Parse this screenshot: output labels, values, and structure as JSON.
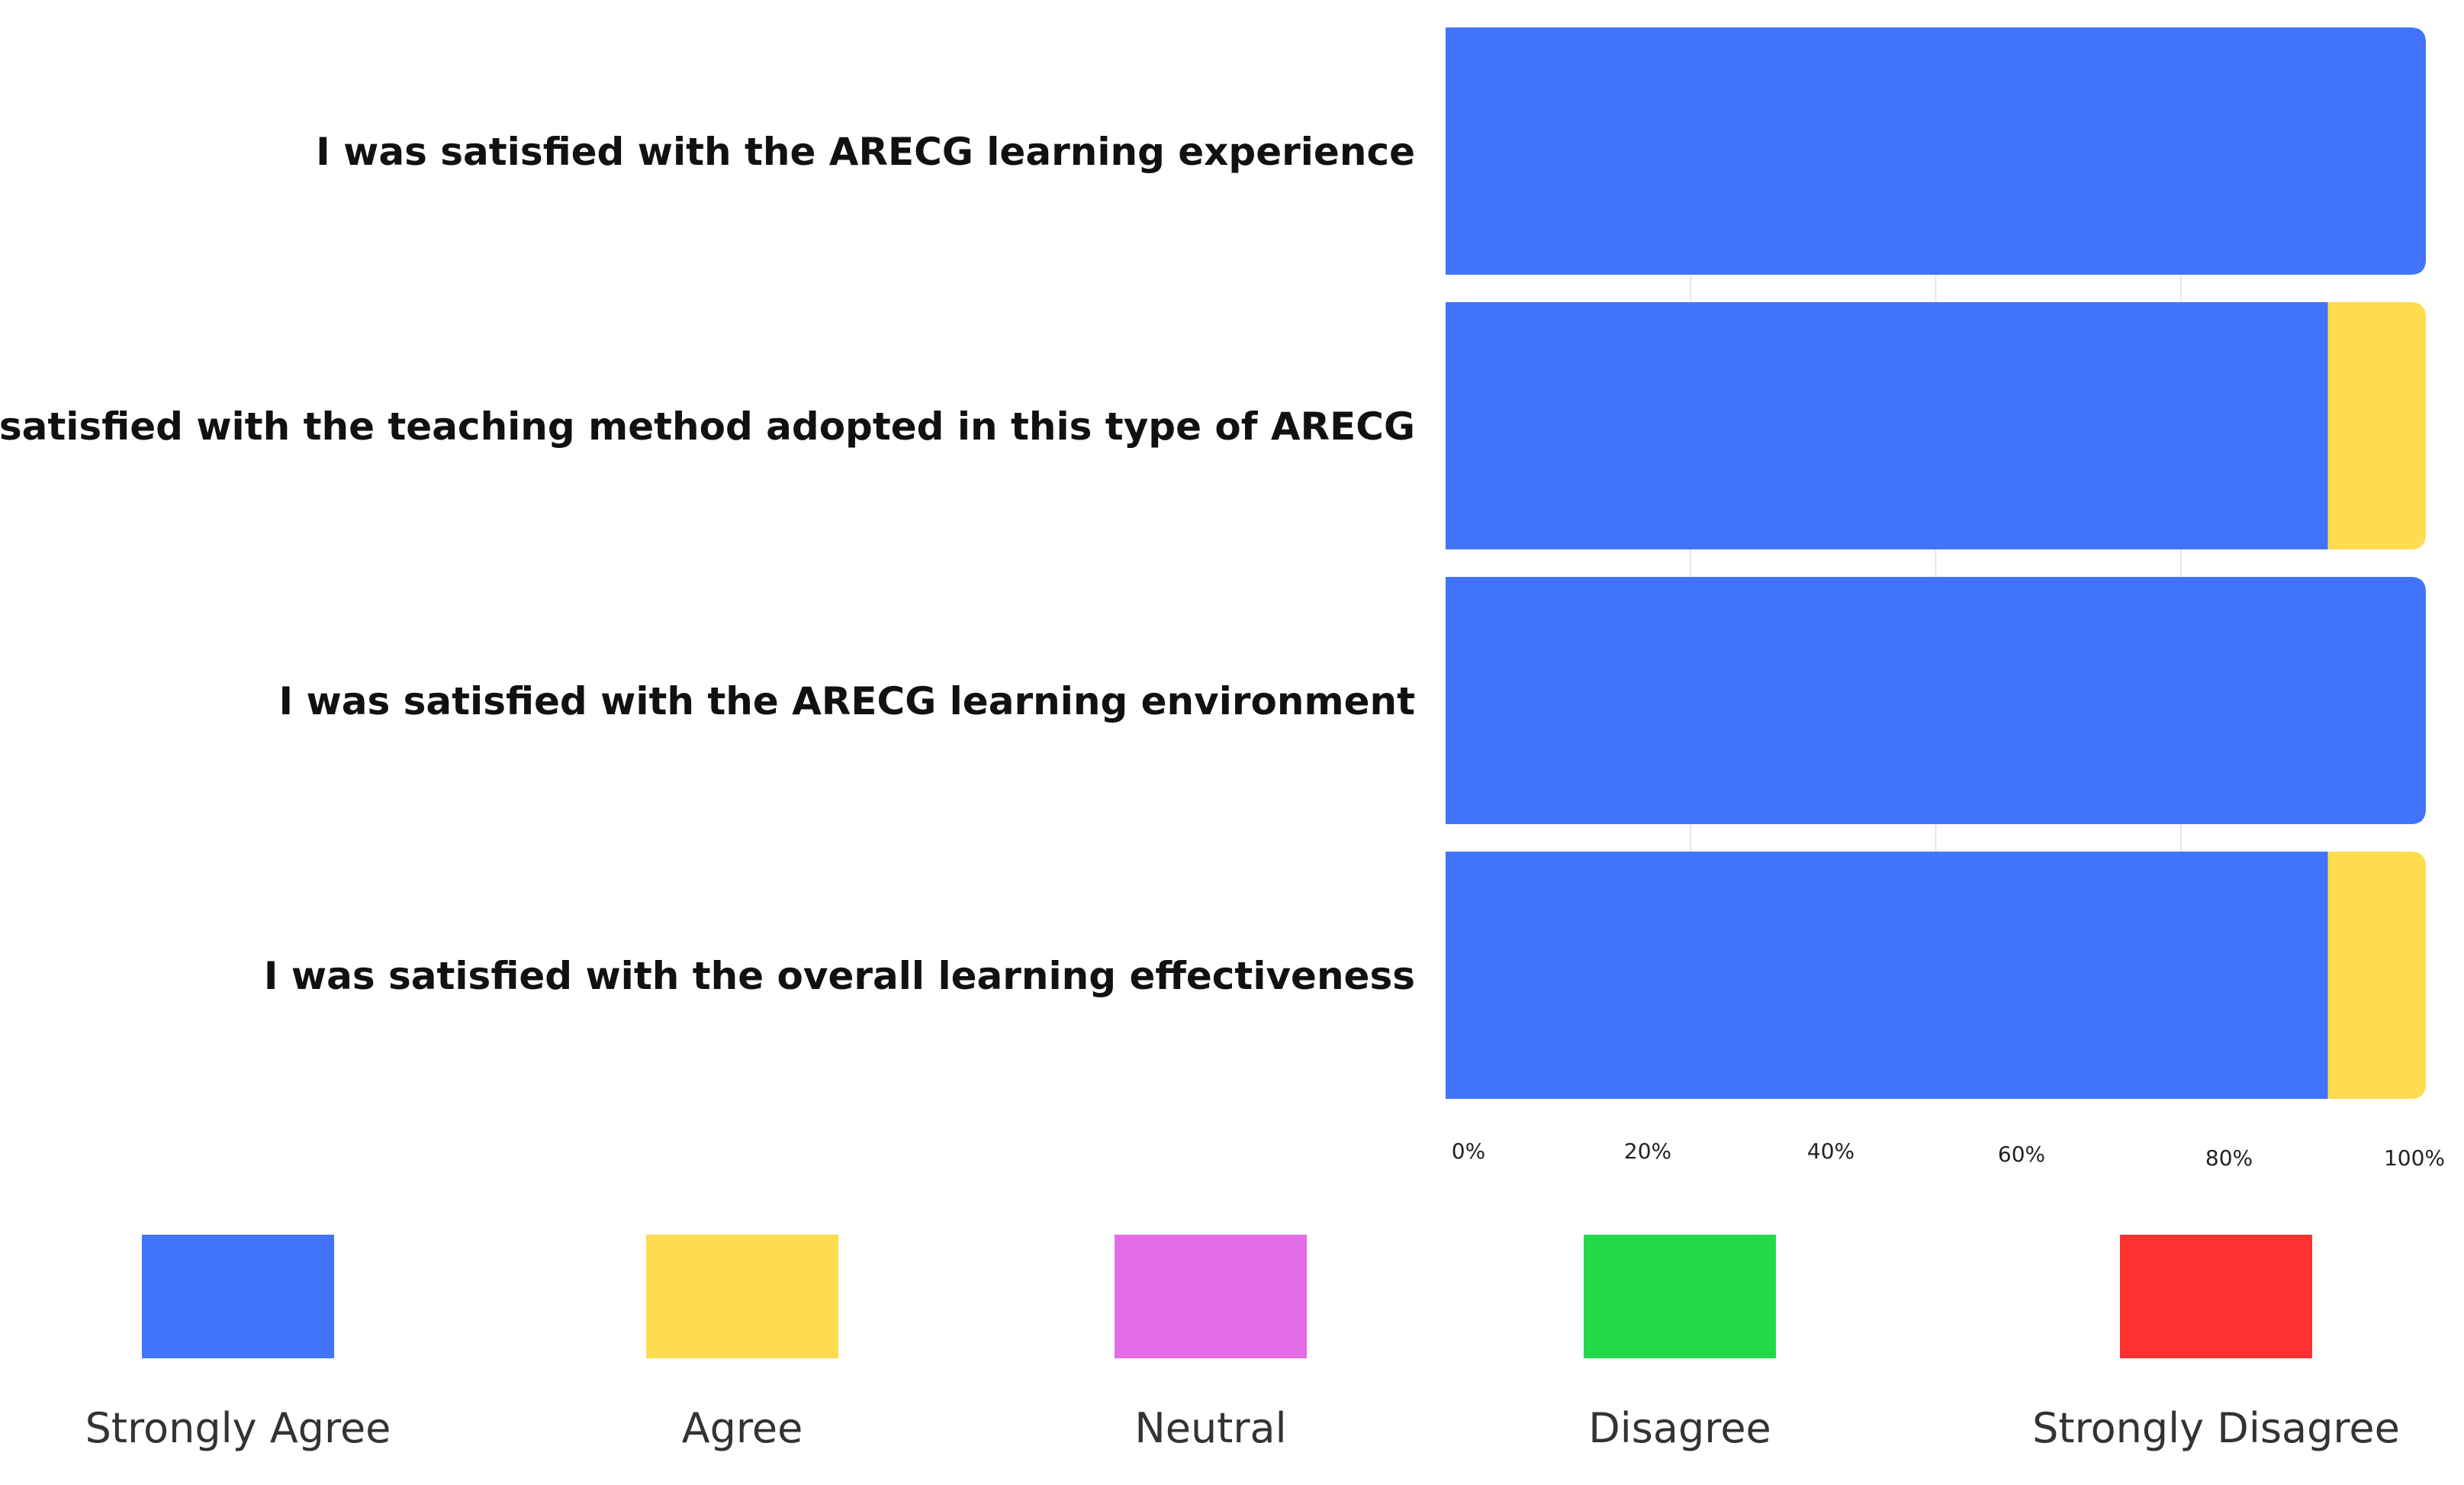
{
  "chart_data": {
    "type": "bar",
    "orientation": "horizontal",
    "stacked": true,
    "title": "",
    "xlabel": "",
    "ylabel": "",
    "xlim": [
      0,
      100
    ],
    "grid": true,
    "legend_placement": "bottom",
    "categories": [
      "I was satisfied with the ARECG learning experience",
      "I was satisfied with the teaching method adopted in this type of ARECG",
      "I was satisfied with the ARECG learning environment",
      "I was satisfied with the overall learning effectiveness"
    ],
    "x_ticks": [
      "0%",
      "20%",
      "40%",
      "60%",
      "80%",
      "100%"
    ],
    "series": [
      {
        "name": "Strongly Agree",
        "color": "#4174fb",
        "values": [
          100,
          90,
          100,
          90
        ]
      },
      {
        "name": "Agree",
        "color": "#fedb4f",
        "values": [
          0,
          10,
          0,
          10
        ]
      },
      {
        "name": "Neutral",
        "color": "#e26be6",
        "values": [
          0,
          0,
          0,
          0
        ]
      },
      {
        "name": "Disagree",
        "color": "#24d84a",
        "values": [
          0,
          0,
          0,
          0
        ]
      },
      {
        "name": "Strongly Disagree",
        "color": "#ff3131",
        "values": [
          0,
          0,
          0,
          0
        ]
      }
    ]
  }
}
